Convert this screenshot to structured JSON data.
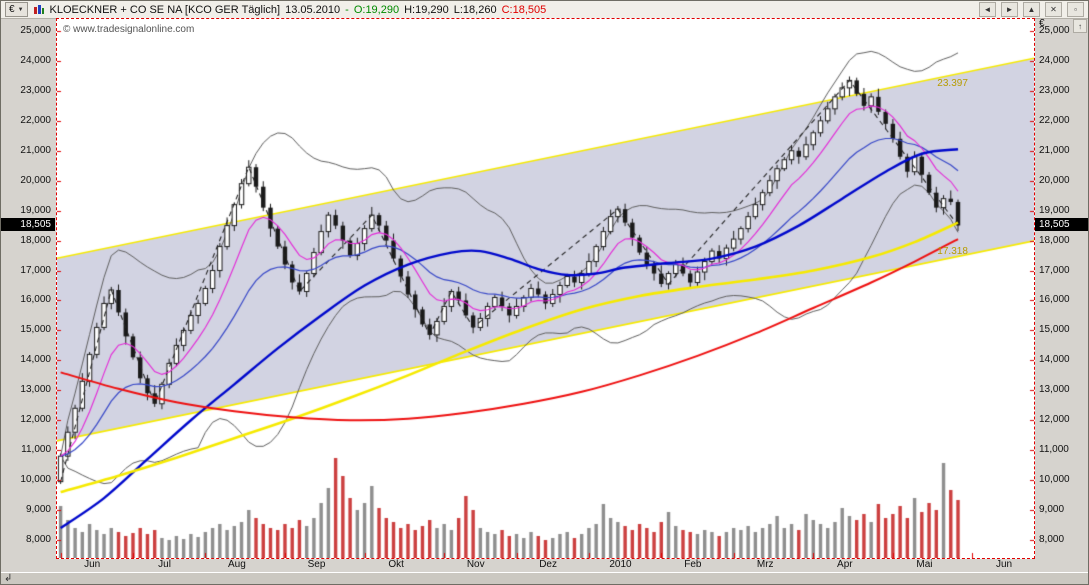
{
  "titlebar": {
    "currency": "€",
    "caret": "▼",
    "title": "KLOECKNER + CO SE NA [KCO GER  Täglich]",
    "date": "13.05.2010",
    "separator": "-",
    "open": "O:19,290",
    "high": "H:19,290",
    "low": "L:18,260",
    "close": "C:18,505",
    "buttons": [
      {
        "name": "scroll-left",
        "glyph": "◄"
      },
      {
        "name": "scroll-right",
        "glyph": "►"
      },
      {
        "name": "pane-maximize",
        "glyph": "▲"
      },
      {
        "name": "close",
        "glyph": "✕"
      },
      {
        "name": "pane-detach",
        "glyph": "▫"
      }
    ]
  },
  "watermark": "© www.tradesignalonline.com",
  "colors": {
    "axis_line": "#e00000",
    "open_text": "#008a00",
    "close_text": "#e00000",
    "marker_bg": "#000000",
    "marker_text": "#ffffff",
    "channel_label_text": "#b89c00"
  },
  "axes": {
    "left_currency": "€",
    "right_currency": "€",
    "scroll_up_glyph": "↑",
    "y_ticks": [
      {
        "value": 25000,
        "label": "25,000"
      },
      {
        "value": 24000,
        "label": "24,000"
      },
      {
        "value": 23000,
        "label": "23,000"
      },
      {
        "value": 22000,
        "label": "22,000"
      },
      {
        "value": 21000,
        "label": "21,000"
      },
      {
        "value": 20000,
        "label": "20,000"
      },
      {
        "value": 19000,
        "label": "19,000"
      },
      {
        "value": 18000,
        "label": "18,000"
      },
      {
        "value": 17000,
        "label": "17,000"
      },
      {
        "value": 16000,
        "label": "16,000"
      },
      {
        "value": 15000,
        "label": "15,000"
      },
      {
        "value": 14000,
        "label": "14,000"
      },
      {
        "value": 13000,
        "label": "13,000"
      },
      {
        "value": 12000,
        "label": "12,000"
      },
      {
        "value": 11000,
        "label": "11,000"
      },
      {
        "value": 10000,
        "label": "10,000"
      },
      {
        "value": 9000,
        "label": "9,000"
      },
      {
        "value": 8000,
        "label": "8,000"
      }
    ],
    "x_ticks": [
      {
        "slot": 0,
        "label": "Jun"
      },
      {
        "slot": 10,
        "label": "Jul"
      },
      {
        "slot": 20,
        "label": "Aug"
      },
      {
        "slot": 31,
        "label": "Sep"
      },
      {
        "slot": 42,
        "label": "Okt"
      },
      {
        "slot": 53,
        "label": "Nov"
      },
      {
        "slot": 63,
        "label": "Dez"
      },
      {
        "slot": 73,
        "label": "2010"
      },
      {
        "slot": 83,
        "label": "Feb"
      },
      {
        "slot": 93,
        "label": "Mrz"
      },
      {
        "slot": 104,
        "label": "Apr"
      },
      {
        "slot": 115,
        "label": "Mai"
      },
      {
        "slot": 126,
        "label": "Jun"
      }
    ]
  },
  "footer": {
    "resize_glyph": "↲"
  },
  "chart_data": {
    "type": "candlestick",
    "symbol": "KLOECKNER + CO SE NA",
    "ticker": "KCO GER",
    "interval": "Täglich",
    "date": "13.05.2010",
    "ohlc_display": {
      "open": "19,290",
      "high": "19,290",
      "low": "18,260",
      "close": "18,505"
    },
    "y_domain": [
      7400,
      25400
    ],
    "slots": 135,
    "first_open": 9950,
    "closes": [
      10800,
      11600,
      12400,
      13300,
      14200,
      15100,
      15900,
      16350,
      15600,
      14800,
      14100,
      13400,
      12900,
      12550,
      13200,
      13900,
      14500,
      15000,
      15500,
      15900,
      16400,
      17000,
      17800,
      18500,
      19200,
      19900,
      20450,
      19800,
      19100,
      18400,
      17800,
      17200,
      16600,
      16300,
      16900,
      17600,
      18300,
      18850,
      18500,
      18000,
      17500,
      17900,
      18400,
      18850,
      18500,
      18000,
      17400,
      16800,
      16200,
      15700,
      15200,
      14850,
      15300,
      15800,
      16300,
      16000,
      15500,
      15100,
      15400,
      15800,
      16100,
      15800,
      15500,
      15800,
      16100,
      16400,
      16200,
      15900,
      16200,
      16500,
      16800,
      16600,
      16900,
      17300,
      17800,
      18300,
      18800,
      19050,
      18600,
      18100,
      17600,
      17200,
      16900,
      16550,
      16900,
      17200,
      16900,
      16600,
      16950,
      17300,
      17650,
      17400,
      17750,
      18050,
      18400,
      18800,
      19200,
      19600,
      20000,
      20400,
      20700,
      21000,
      20800,
      21200,
      21600,
      22000,
      22400,
      22800,
      23100,
      23350,
      22900,
      22500,
      22800,
      22300,
      21900,
      21400,
      20800,
      20300,
      20800,
      20200,
      19600,
      19100,
      19400,
      19290,
      18505
    ],
    "volumes": [
      52,
      38,
      30,
      26,
      34,
      28,
      24,
      30,
      26,
      22,
      25,
      30,
      24,
      28,
      20,
      18,
      22,
      19,
      24,
      21,
      26,
      30,
      34,
      28,
      32,
      36,
      48,
      40,
      34,
      30,
      28,
      34,
      30,
      38,
      32,
      40,
      55,
      70,
      100,
      82,
      60,
      48,
      55,
      72,
      50,
      40,
      36,
      30,
      34,
      28,
      32,
      38,
      30,
      34,
      28,
      40,
      62,
      48,
      30,
      26,
      24,
      28,
      22,
      24,
      20,
      26,
      22,
      18,
      20,
      24,
      26,
      20,
      24,
      30,
      34,
      54,
      40,
      36,
      32,
      28,
      34,
      30,
      26,
      36,
      46,
      32,
      28,
      26,
      24,
      28,
      26,
      22,
      26,
      30,
      28,
      32,
      26,
      30,
      34,
      42,
      30,
      34,
      28,
      44,
      38,
      34,
      30,
      36,
      50,
      42,
      38,
      44,
      36,
      54,
      40,
      44,
      52,
      40,
      60,
      46,
      55,
      48,
      95,
      68,
      58
    ],
    "wick_base": 130,
    "wick_cycle": [
      0.7,
      1.5,
      0.9,
      2.1,
      0.6,
      1.2,
      1.8,
      0.8,
      1.4,
      1.0
    ],
    "candle_colors": {
      "up_fill": "#ffffff",
      "down_fill": "#1a1a1a",
      "stroke": "#1a1a1a"
    },
    "volume_colors": {
      "up": "#8f8f8f",
      "down": "#cc4040"
    },
    "series": {
      "red_slow_ma": {
        "color": "#ee1010",
        "width": 2.0,
        "points": [
          [
            0,
            13600
          ],
          [
            8,
            13050
          ],
          [
            16,
            12600
          ],
          [
            24,
            12300
          ],
          [
            32,
            12100
          ],
          [
            40,
            12000
          ],
          [
            48,
            12050
          ],
          [
            56,
            12250
          ],
          [
            64,
            12550
          ],
          [
            72,
            12950
          ],
          [
            80,
            13500
          ],
          [
            88,
            14150
          ],
          [
            96,
            14900
          ],
          [
            104,
            15750
          ],
          [
            112,
            16600
          ],
          [
            118,
            17300
          ],
          [
            124,
            18050
          ]
        ]
      },
      "yellow_mid_ma": {
        "color": "#f6ea00",
        "width": 2.6,
        "points": [
          [
            0,
            9600
          ],
          [
            8,
            10150
          ],
          [
            16,
            10750
          ],
          [
            24,
            11400
          ],
          [
            32,
            12050
          ],
          [
            40,
            12750
          ],
          [
            48,
            13500
          ],
          [
            56,
            14300
          ],
          [
            64,
            15050
          ],
          [
            72,
            15700
          ],
          [
            80,
            16150
          ],
          [
            88,
            16450
          ],
          [
            96,
            16700
          ],
          [
            104,
            17000
          ],
          [
            112,
            17450
          ],
          [
            118,
            17950
          ],
          [
            124,
            18600
          ]
        ]
      },
      "blue_fast_ma": {
        "color": "#0008cc",
        "width": 2.4,
        "points": [
          [
            0,
            8400
          ],
          [
            6,
            9400
          ],
          [
            12,
            10700
          ],
          [
            18,
            12000
          ],
          [
            24,
            13200
          ],
          [
            30,
            14400
          ],
          [
            36,
            15500
          ],
          [
            42,
            16500
          ],
          [
            48,
            17200
          ],
          [
            54,
            17600
          ],
          [
            58,
            17650
          ],
          [
            62,
            17400
          ],
          [
            66,
            17050
          ],
          [
            70,
            16850
          ],
          [
            74,
            16900
          ],
          [
            78,
            17100
          ],
          [
            84,
            17250
          ],
          [
            90,
            17400
          ],
          [
            96,
            17800
          ],
          [
            102,
            18500
          ],
          [
            108,
            19400
          ],
          [
            114,
            20300
          ],
          [
            119,
            20900
          ],
          [
            124,
            21050
          ]
        ]
      }
    },
    "computed": {
      "ema_fast_period": 8,
      "ema_mid_period": 20,
      "ema_fast_color": "#e428d8",
      "ema_mid_color": "#3848c8",
      "bollinger": {
        "period": 20,
        "mult": 2,
        "color": "#5f5f5f"
      }
    },
    "zigzag": {
      "color": "#222222",
      "points": [
        [
          0,
          9950
        ],
        [
          7,
          16350
        ],
        [
          13,
          12550
        ],
        [
          26,
          20450
        ],
        [
          33,
          16300
        ],
        [
          43,
          18850
        ],
        [
          51,
          14850
        ],
        [
          54,
          16300
        ],
        [
          57,
          15100
        ],
        [
          77,
          19050
        ],
        [
          84,
          16550
        ],
        [
          109,
          23350
        ],
        [
          124,
          18505
        ]
      ]
    },
    "channel": {
      "upper": [
        [
          0,
          17400
        ],
        [
          134,
          24100
        ]
      ],
      "lower": [
        [
          0,
          11300
        ],
        [
          134,
          18000
        ]
      ],
      "fill": "rgba(118,120,168,0.33)",
      "line_color": "#f6ea00",
      "upper_label": "23.397",
      "lower_label": "17.318",
      "label_slot": 121
    },
    "price_marker": {
      "text": "18,505",
      "value": 18505
    }
  }
}
